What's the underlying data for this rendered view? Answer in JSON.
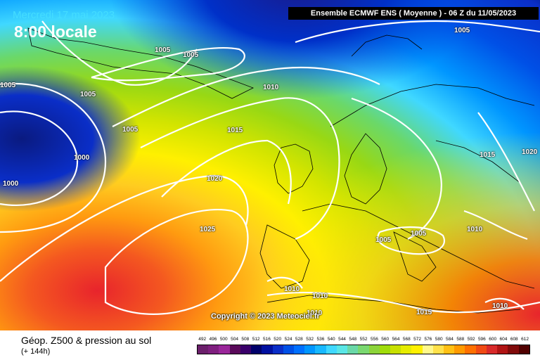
{
  "header": {
    "date": "Mercredi 17 mai 2023",
    "time": "8:00 locale",
    "run_info": "Ensemble ECMWF ENS  ( Moyenne )  - 06 Z du 11/05/2023"
  },
  "map": {
    "isobar_labels": [
      "1005",
      "1005",
      "1005",
      "1005",
      "1005",
      "1010",
      "1015",
      "1005",
      "1000",
      "1000",
      "1020",
      "1025",
      "1015",
      "1020",
      "1005",
      "1005",
      "1010",
      "1010",
      "1010",
      "1010",
      "1015",
      "1010"
    ],
    "colors": {
      "low": "#0a2a8a",
      "mid": "#8cd400",
      "high": "#e8202a",
      "isobar": "#ffffff"
    },
    "copyright": "Copyright © 2023 Meteociel.fr"
  },
  "footer": {
    "param_title": "Géop. Z500 & pression au sol",
    "param_subtitle": "(+ 144h)",
    "scale": {
      "values": [
        "492",
        "496",
        "500",
        "504",
        "508",
        "512",
        "516",
        "520",
        "524",
        "528",
        "532",
        "536",
        "540",
        "544",
        "548",
        "552",
        "556",
        "560",
        "564",
        "568",
        "572",
        "576",
        "580",
        "584",
        "588",
        "592",
        "596",
        "600",
        "604",
        "608",
        "612"
      ],
      "colors": [
        "#6b1f6b",
        "#7f1f7f",
        "#9a269a",
        "#5a0a5a",
        "#3a006a",
        "#00006a",
        "#0010a0",
        "#0a2ec8",
        "#0050e6",
        "#0070ff",
        "#0096ff",
        "#18b8ff",
        "#40d8ff",
        "#5ae6e6",
        "#6ad8a8",
        "#7ad870",
        "#8cd43a",
        "#a0dc0a",
        "#c8e000",
        "#e6ec00",
        "#fff000",
        "#fff88c",
        "#ffe14a",
        "#ffc014",
        "#ff9a00",
        "#ff7000",
        "#f04a14",
        "#d82a2a",
        "#b01414",
        "#800a0a",
        "#500000"
      ]
    }
  }
}
